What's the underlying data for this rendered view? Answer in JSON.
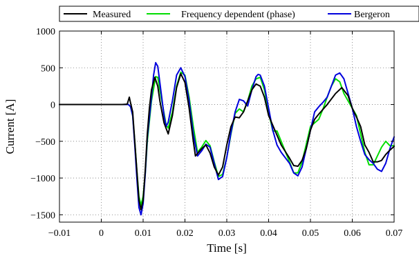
{
  "chart_data": {
    "type": "line",
    "xlabel": "Time [s]",
    "ylabel": "Current [A]",
    "xlim": [
      -0.01,
      0.07
    ],
    "ylim": [
      -1600,
      1000
    ],
    "x_ticks": [
      -0.01,
      0,
      0.01,
      0.02,
      0.03,
      0.04,
      0.05,
      0.06,
      0.07
    ],
    "x_tick_labels": [
      "−0.01",
      "0",
      "0.01",
      "0.02",
      "0.03",
      "0.04",
      "0.05",
      "0.06",
      "0.07"
    ],
    "y_ticks": [
      -1500,
      -1000,
      -500,
      0,
      500,
      1000
    ],
    "y_tick_labels": [
      "−1500",
      "−1000",
      "−500",
      "0",
      "500",
      "1000"
    ],
    "grid": true,
    "grid_style": "dotted",
    "legend_position": "top",
    "series": [
      {
        "name": "Measured",
        "color": "#000000",
        "points": [
          [
            -0.01,
            0
          ],
          [
            0.005,
            0
          ],
          [
            0.0062,
            5
          ],
          [
            0.0067,
            100
          ],
          [
            0.007,
            20
          ],
          [
            0.0075,
            -100
          ],
          [
            0.008,
            -500
          ],
          [
            0.0085,
            -900
          ],
          [
            0.009,
            -1300
          ],
          [
            0.0095,
            -1430
          ],
          [
            0.01,
            -1300
          ],
          [
            0.0105,
            -900
          ],
          [
            0.011,
            -400
          ],
          [
            0.0115,
            -50
          ],
          [
            0.012,
            200
          ],
          [
            0.0128,
            370
          ],
          [
            0.0135,
            250
          ],
          [
            0.014,
            50
          ],
          [
            0.015,
            -250
          ],
          [
            0.016,
            -400
          ],
          [
            0.017,
            -150
          ],
          [
            0.018,
            230
          ],
          [
            0.019,
            420
          ],
          [
            0.02,
            300
          ],
          [
            0.021,
            -50
          ],
          [
            0.022,
            -500
          ],
          [
            0.0225,
            -700
          ],
          [
            0.024,
            -600
          ],
          [
            0.025,
            -550
          ],
          [
            0.026,
            -660
          ],
          [
            0.027,
            -850
          ],
          [
            0.028,
            -960
          ],
          [
            0.029,
            -850
          ],
          [
            0.03,
            -550
          ],
          [
            0.031,
            -300
          ],
          [
            0.032,
            -170
          ],
          [
            0.033,
            -180
          ],
          [
            0.034,
            -100
          ],
          [
            0.035,
            50
          ],
          [
            0.036,
            200
          ],
          [
            0.037,
            280
          ],
          [
            0.038,
            250
          ],
          [
            0.039,
            100
          ],
          [
            0.04,
            -150
          ],
          [
            0.0415,
            -350
          ],
          [
            0.043,
            -550
          ],
          [
            0.045,
            -730
          ],
          [
            0.046,
            -830
          ],
          [
            0.047,
            -840
          ],
          [
            0.048,
            -760
          ],
          [
            0.049,
            -600
          ],
          [
            0.05,
            -350
          ],
          [
            0.051,
            -200
          ],
          [
            0.052,
            -130
          ],
          [
            0.054,
            0
          ],
          [
            0.056,
            150
          ],
          [
            0.0575,
            230
          ],
          [
            0.059,
            120
          ],
          [
            0.06,
            -50
          ],
          [
            0.061,
            -170
          ],
          [
            0.062,
            -300
          ],
          [
            0.063,
            -550
          ],
          [
            0.064,
            -650
          ],
          [
            0.065,
            -780
          ],
          [
            0.066,
            -780
          ],
          [
            0.067,
            -760
          ],
          [
            0.068,
            -680
          ],
          [
            0.069,
            -620
          ],
          [
            0.07,
            -570
          ]
        ]
      },
      {
        "name": "Frequency dependent (phase)",
        "color": "#00dd00",
        "points": [
          [
            -0.01,
            0
          ],
          [
            0.0065,
            0
          ],
          [
            0.007,
            -30
          ],
          [
            0.0075,
            -150
          ],
          [
            0.008,
            -500
          ],
          [
            0.0085,
            -900
          ],
          [
            0.009,
            -1250
          ],
          [
            0.0095,
            -1370
          ],
          [
            0.01,
            -1250
          ],
          [
            0.0105,
            -950
          ],
          [
            0.011,
            -500
          ],
          [
            0.012,
            50
          ],
          [
            0.013,
            380
          ],
          [
            0.0135,
            370
          ],
          [
            0.014,
            200
          ],
          [
            0.015,
            -120
          ],
          [
            0.0155,
            -280
          ],
          [
            0.016,
            -320
          ],
          [
            0.017,
            -100
          ],
          [
            0.018,
            250
          ],
          [
            0.019,
            440
          ],
          [
            0.02,
            400
          ],
          [
            0.021,
            100
          ],
          [
            0.022,
            -300
          ],
          [
            0.023,
            -650
          ],
          [
            0.024,
            -580
          ],
          [
            0.025,
            -490
          ],
          [
            0.026,
            -560
          ],
          [
            0.027,
            -780
          ],
          [
            0.028,
            -980
          ],
          [
            0.029,
            -950
          ],
          [
            0.03,
            -720
          ],
          [
            0.031,
            -400
          ],
          [
            0.032,
            -120
          ],
          [
            0.033,
            -60
          ],
          [
            0.034,
            -100
          ],
          [
            0.035,
            50
          ],
          [
            0.036,
            250
          ],
          [
            0.037,
            350
          ],
          [
            0.038,
            370
          ],
          [
            0.039,
            200
          ],
          [
            0.04,
            -100
          ],
          [
            0.041,
            -360
          ],
          [
            0.042,
            -360
          ],
          [
            0.043,
            -500
          ],
          [
            0.045,
            -780
          ],
          [
            0.046,
            -930
          ],
          [
            0.047,
            -930
          ],
          [
            0.048,
            -780
          ],
          [
            0.049,
            -540
          ],
          [
            0.05,
            -300
          ],
          [
            0.051,
            -250
          ],
          [
            0.052,
            -200
          ],
          [
            0.053,
            -60
          ],
          [
            0.054,
            100
          ],
          [
            0.055,
            250
          ],
          [
            0.056,
            350
          ],
          [
            0.057,
            310
          ],
          [
            0.058,
            150
          ],
          [
            0.059,
            50
          ],
          [
            0.06,
            -50
          ],
          [
            0.061,
            -150
          ],
          [
            0.062,
            -400
          ],
          [
            0.063,
            -650
          ],
          [
            0.064,
            -820
          ],
          [
            0.065,
            -820
          ],
          [
            0.066,
            -700
          ],
          [
            0.067,
            -580
          ],
          [
            0.068,
            -500
          ],
          [
            0.069,
            -560
          ],
          [
            0.07,
            -560
          ]
        ]
      },
      {
        "name": "Bergeron",
        "color": "#0000dd",
        "points": [
          [
            -0.01,
            0
          ],
          [
            0.0065,
            0
          ],
          [
            0.007,
            -30
          ],
          [
            0.0075,
            -150
          ],
          [
            0.008,
            -550
          ],
          [
            0.0085,
            -1000
          ],
          [
            0.009,
            -1400
          ],
          [
            0.0095,
            -1500
          ],
          [
            0.01,
            -1350
          ],
          [
            0.0105,
            -950
          ],
          [
            0.011,
            -450
          ],
          [
            0.012,
            100
          ],
          [
            0.0125,
            400
          ],
          [
            0.013,
            570
          ],
          [
            0.0135,
            520
          ],
          [
            0.014,
            300
          ],
          [
            0.015,
            -150
          ],
          [
            0.0155,
            -300
          ],
          [
            0.016,
            -240
          ],
          [
            0.017,
            50
          ],
          [
            0.018,
            400
          ],
          [
            0.019,
            500
          ],
          [
            0.02,
            380
          ],
          [
            0.021,
            50
          ],
          [
            0.022,
            -400
          ],
          [
            0.023,
            -700
          ],
          [
            0.024,
            -630
          ],
          [
            0.025,
            -540
          ],
          [
            0.026,
            -580
          ],
          [
            0.027,
            -800
          ],
          [
            0.028,
            -1020
          ],
          [
            0.029,
            -980
          ],
          [
            0.03,
            -720
          ],
          [
            0.031,
            -380
          ],
          [
            0.032,
            -100
          ],
          [
            0.033,
            70
          ],
          [
            0.034,
            50
          ],
          [
            0.035,
            -20
          ],
          [
            0.036,
            200
          ],
          [
            0.037,
            380
          ],
          [
            0.0375,
            410
          ],
          [
            0.038,
            400
          ],
          [
            0.039,
            250
          ],
          [
            0.04,
            -50
          ],
          [
            0.041,
            -350
          ],
          [
            0.042,
            -550
          ],
          [
            0.043,
            -650
          ],
          [
            0.045,
            -800
          ],
          [
            0.046,
            -930
          ],
          [
            0.047,
            -970
          ],
          [
            0.048,
            -850
          ],
          [
            0.049,
            -600
          ],
          [
            0.05,
            -350
          ],
          [
            0.051,
            -100
          ],
          [
            0.052,
            -30
          ],
          [
            0.053,
            30
          ],
          [
            0.054,
            100
          ],
          [
            0.055,
            250
          ],
          [
            0.056,
            400
          ],
          [
            0.057,
            430
          ],
          [
            0.058,
            350
          ],
          [
            0.059,
            150
          ],
          [
            0.06,
            -50
          ],
          [
            0.061,
            -300
          ],
          [
            0.062,
            -500
          ],
          [
            0.063,
            -680
          ],
          [
            0.064,
            -750
          ],
          [
            0.065,
            -800
          ],
          [
            0.066,
            -880
          ],
          [
            0.067,
            -910
          ],
          [
            0.068,
            -800
          ],
          [
            0.069,
            -600
          ],
          [
            0.07,
            -440
          ]
        ]
      }
    ]
  }
}
